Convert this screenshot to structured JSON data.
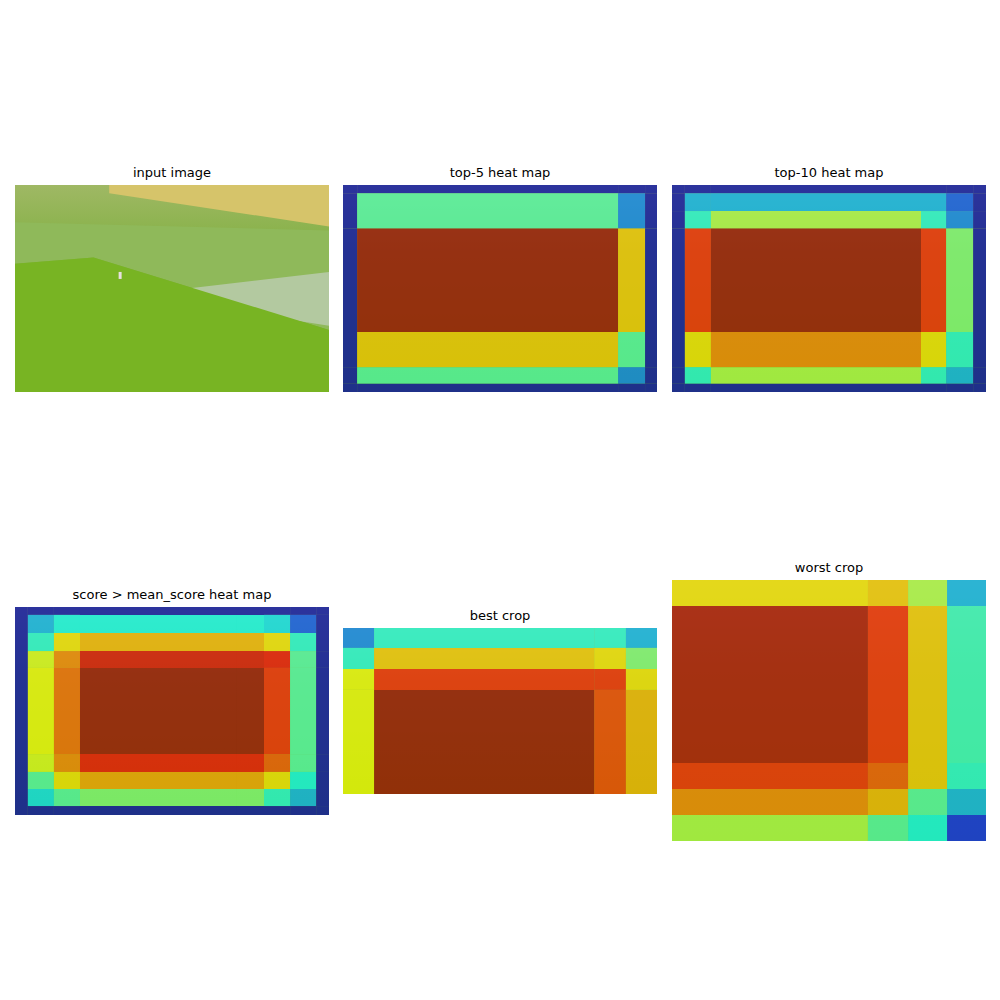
{
  "chart_data": [
    {
      "type": "image",
      "title": "input image",
      "tick_labels": false
    },
    {
      "type": "heatmap",
      "title": "top-5 heat map",
      "tick_labels": false,
      "x_edges": [
        0,
        0.045,
        0.876,
        0.962,
        1
      ],
      "y_edges": [
        0,
        0.04,
        0.21,
        0.71,
        0.88,
        0.96,
        1
      ],
      "cells": [
        [
          0.05,
          0.05,
          0.05,
          0.05
        ],
        [
          0.05,
          0.45,
          0.25,
          0.05
        ],
        [
          0.05,
          0.97,
          0.68,
          0.05
        ],
        [
          0.05,
          0.68,
          0.45,
          0.05
        ],
        [
          0.05,
          0.45,
          0.25,
          0.05
        ],
        [
          0.05,
          0.05,
          0.05,
          0.05
        ]
      ],
      "clim": [
        0,
        1
      ]
    },
    {
      "type": "heatmap",
      "title": "top-10 heat map",
      "tick_labels": false,
      "x_edges": [
        0,
        0.041,
        0.124,
        0.793,
        0.873,
        0.959,
        1
      ],
      "y_edges": [
        0,
        0.04,
        0.126,
        0.21,
        0.71,
        0.88,
        0.96,
        1
      ],
      "cells": [
        [
          0.05,
          0.05,
          0.05,
          0.05,
          0.05,
          0.05
        ],
        [
          0.05,
          0.3,
          0.3,
          0.3,
          0.2,
          0.05
        ],
        [
          0.05,
          0.4,
          0.55,
          0.4,
          0.25,
          0.05
        ],
        [
          0.05,
          0.85,
          0.97,
          0.85,
          0.5,
          0.05
        ],
        [
          0.05,
          0.65,
          0.75,
          0.65,
          0.4,
          0.05
        ],
        [
          0.05,
          0.4,
          0.55,
          0.4,
          0.3,
          0.05
        ],
        [
          0.05,
          0.05,
          0.05,
          0.05,
          0.05,
          0.05
        ]
      ],
      "clim": [
        0,
        1
      ]
    },
    {
      "type": "heatmap",
      "title": "score > mean_score heat map",
      "tick_labels": false,
      "x_edges": [
        0,
        0.041,
        0.124,
        0.207,
        0.707,
        0.793,
        0.876,
        0.959,
        1
      ],
      "y_edges": [
        0,
        0.038,
        0.125,
        0.212,
        0.293,
        0.707,
        0.793,
        0.875,
        0.957,
        1
      ],
      "cells": [
        [
          0.05,
          0.05,
          0.05,
          0.05,
          0.05,
          0.05,
          0.05,
          0.05
        ],
        [
          0.05,
          0.3,
          0.38,
          0.38,
          0.38,
          0.35,
          0.2,
          0.05
        ],
        [
          0.05,
          0.4,
          0.65,
          0.7,
          0.7,
          0.65,
          0.4,
          0.05
        ],
        [
          0.05,
          0.6,
          0.75,
          0.9,
          0.9,
          0.88,
          0.45,
          0.05
        ],
        [
          0.05,
          0.62,
          0.78,
          0.97,
          0.97,
          0.85,
          0.45,
          0.05
        ],
        [
          0.05,
          0.6,
          0.75,
          0.88,
          0.88,
          0.8,
          0.45,
          0.05
        ],
        [
          0.05,
          0.45,
          0.65,
          0.72,
          0.72,
          0.65,
          0.38,
          0.05
        ],
        [
          0.05,
          0.35,
          0.45,
          0.5,
          0.5,
          0.4,
          0.3,
          0.05
        ],
        [
          0.05,
          0.05,
          0.05,
          0.05,
          0.05,
          0.05,
          0.05,
          0.05
        ]
      ],
      "clim": [
        0,
        1
      ]
    },
    {
      "type": "heatmap",
      "title": "best crop",
      "tick_labels": false,
      "x_edges": [
        0,
        0.099,
        0.8,
        0.901,
        1
      ],
      "y_edges": [
        0,
        0.12,
        0.247,
        0.373,
        1
      ],
      "cells": [
        [
          0.25,
          0.4,
          0.4,
          0.3
        ],
        [
          0.4,
          0.68,
          0.65,
          0.5
        ],
        [
          0.62,
          0.85,
          0.85,
          0.65
        ],
        [
          0.62,
          0.97,
          0.82,
          0.7
        ]
      ],
      "clim": [
        0,
        1
      ]
    },
    {
      "type": "heatmap",
      "title": "worst crop",
      "tick_labels": false,
      "x_edges": [
        0,
        0.624,
        0.752,
        0.876,
        1
      ],
      "y_edges": [
        0,
        0.1,
        0.701,
        0.801,
        0.9,
        1
      ],
      "cells": [
        [
          0.65,
          0.68,
          0.55,
          0.3
        ],
        [
          0.95,
          0.85,
          0.68,
          0.42
        ],
        [
          0.85,
          0.8,
          0.68,
          0.4
        ],
        [
          0.75,
          0.7,
          0.45,
          0.3
        ],
        [
          0.55,
          0.45,
          0.38,
          0.15
        ]
      ],
      "clim": [
        0,
        1
      ]
    }
  ]
}
